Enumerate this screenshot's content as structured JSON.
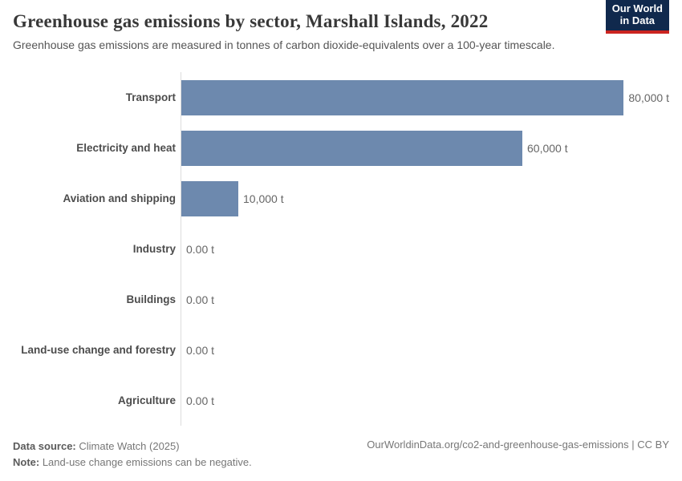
{
  "header": {
    "title": "Greenhouse gas emissions by sector, Marshall Islands, 2022",
    "subtitle": "Greenhouse gas emissions are measured in tonnes of carbon dioxide-equivalents over a 100-year timescale.",
    "logo": {
      "line1": "Our World",
      "line2": "in Data",
      "background_color": "#10294d",
      "accent_color": "#cb2420"
    }
  },
  "chart_data": {
    "type": "bar",
    "orientation": "horizontal",
    "title": "Greenhouse gas emissions by sector, Marshall Islands, 2022",
    "categories": [
      "Transport",
      "Electricity and heat",
      "Aviation and shipping",
      "Industry",
      "Buildings",
      "Land-use change and forestry",
      "Agriculture"
    ],
    "values": [
      80000,
      60000,
      10000,
      0,
      0,
      0,
      0
    ],
    "value_labels": [
      "80,000 t",
      "60,000 t",
      "10,000 t",
      "0.00 t",
      "0.00 t",
      "0.00 t",
      "0.00 t"
    ],
    "unit": "tonnes of CO2-equivalents",
    "xlim": [
      0,
      80000
    ],
    "bar_color": "#6d89ae",
    "axis_line_color": "#dcdcdc",
    "grid": false,
    "legend": "none"
  },
  "footer": {
    "data_source_label": "Data source:",
    "data_source_value": " Climate Watch (2025)",
    "note_label": "Note:",
    "note_value": " Land-use change emissions can be negative.",
    "credit": "OurWorldinData.org/co2-and-greenhouse-gas-emissions | CC BY"
  }
}
